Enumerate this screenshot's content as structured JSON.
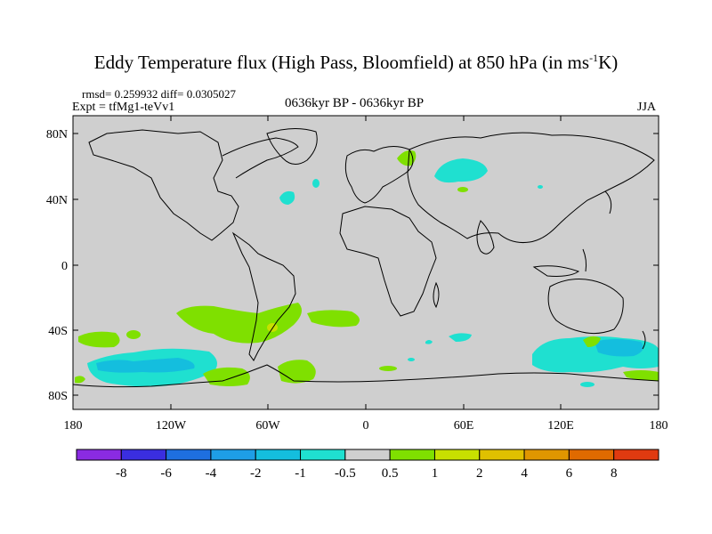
{
  "title": {
    "main": "Eddy Temperature flux (High Pass, Bloomfield) at 850 hPa (in ms",
    "sup": "-1",
    "end": "K)"
  },
  "stats": "rmsd= 0.259932  diff= 0.0305027",
  "experiment": "Expt = tfMg1-teVv1",
  "period": "0636kyr BP - 0636kyr BP",
  "season": "JJA",
  "lat_ticks": [
    "80N",
    "40N",
    "0",
    "40S",
    "80S"
  ],
  "lon_ticks": [
    "180",
    "120W",
    "60W",
    "0",
    "60E",
    "120E",
    "180"
  ],
  "colorbar": {
    "colors": [
      "#8a2be2",
      "#3a2ee0",
      "#1e6fe0",
      "#1e9ee6",
      "#14bede",
      "#1fe0d0",
      "#cfcfcf",
      "#7fe000",
      "#c8e000",
      "#e0c000",
      "#e09600",
      "#e06a00",
      "#e03a10"
    ],
    "labels": [
      "-8",
      "-6",
      "-4",
      "-2",
      "-1",
      "-0.5",
      "0.5",
      "1",
      "2",
      "4",
      "6",
      "8"
    ]
  },
  "colors": {
    "background": "#cfcfcf",
    "cyan": "#1fe0d0",
    "green": "#7fe000",
    "yellow": "#c8e000"
  }
}
